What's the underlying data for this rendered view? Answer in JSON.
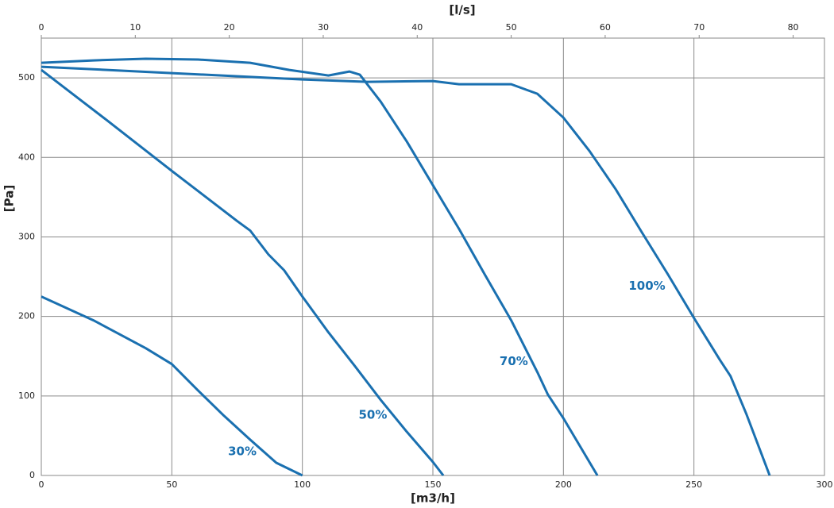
{
  "chart_data": {
    "type": "line",
    "xlabel": "[m3/h]",
    "x2label": "[l/s]",
    "ylabel": "[Pa]",
    "xlim": [
      0,
      300
    ],
    "xticks": [
      0,
      50,
      100,
      150,
      200,
      250,
      300
    ],
    "x2lim": [
      0,
      83.333
    ],
    "x2ticks": [
      0,
      10,
      20,
      30,
      40,
      50,
      60,
      70,
      80
    ],
    "ylim": [
      0,
      550
    ],
    "yticks": [
      0,
      100,
      200,
      300,
      400,
      500
    ],
    "grid": true,
    "series": [
      {
        "color": "#1a70b0",
        "x": [
          0,
          20,
          40,
          50,
          60,
          70,
          80,
          90,
          100
        ],
        "values": [
          225,
          195,
          160,
          140,
          107,
          75,
          45,
          16,
          0
        ]
      },
      {
        "color": "#1a70b0",
        "x": [
          0,
          25,
          50,
          75,
          80,
          87,
          93,
          100,
          110,
          120,
          130,
          140,
          150,
          154
        ],
        "values": [
          510,
          447,
          383,
          320,
          308,
          278,
          258,
          225,
          180,
          138,
          95,
          55,
          17,
          0
        ]
      },
      {
        "color": "#1a70b0",
        "x": [
          0,
          20,
          40,
          60,
          80,
          95,
          110,
          118,
          122,
          130,
          140,
          150,
          160,
          170,
          180,
          190,
          194,
          200,
          213
        ],
        "values": [
          519,
          522,
          524,
          523,
          519,
          510,
          503,
          508,
          504,
          470,
          420,
          365,
          310,
          252,
          195,
          130,
          102,
          72,
          0
        ]
      },
      {
        "color": "#1a70b0",
        "x": [
          0,
          50,
          100,
          125,
          150,
          160,
          180,
          190,
          200,
          210,
          220,
          230,
          240,
          250,
          260,
          264,
          270,
          279
        ],
        "values": [
          514,
          506,
          498,
          495,
          496,
          492,
          492,
          480,
          450,
          408,
          360,
          306,
          253,
          198,
          145,
          125,
          78,
          0
        ]
      }
    ],
    "annotations": [
      {
        "text": "30%",
        "x": 77,
        "y": 30
      },
      {
        "text": "50%",
        "x": 127,
        "y": 76
      },
      {
        "text": "70%",
        "x": 181,
        "y": 143
      },
      {
        "text": "100%",
        "x": 232,
        "y": 238
      }
    ]
  }
}
